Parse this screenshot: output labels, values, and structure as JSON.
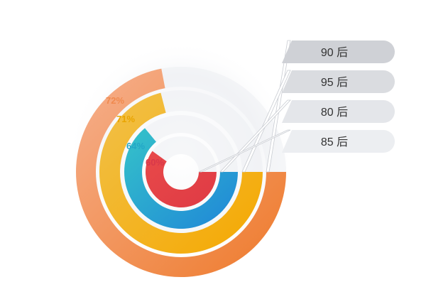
{
  "chart_data": {
    "type": "radial-bar",
    "title": "",
    "series": [
      {
        "label": "90 后",
        "value": 72,
        "value_label": "72%",
        "ring": "outer",
        "color_start": "#f6b08e",
        "color_end": "#ee7a2b",
        "text_color": "#f08a4f"
      },
      {
        "label": "95 后",
        "value": 71,
        "value_label": "71%",
        "ring": "second",
        "color_start": "#f1c14a",
        "color_end": "#f5a800",
        "text_color": "#e9a400"
      },
      {
        "label": "80 后",
        "value": 64,
        "value_label": "64%",
        "ring": "third",
        "color_start": "#35c3c9",
        "color_end": "#1f86d8",
        "text_color": "#23a7c7"
      },
      {
        "label": "85 后",
        "value": 60,
        "value_label": "60%",
        "ring": "inner",
        "color_start": "#e84a4a",
        "color_end": "#df3a44",
        "text_color": "#d8384a"
      }
    ]
  }
}
